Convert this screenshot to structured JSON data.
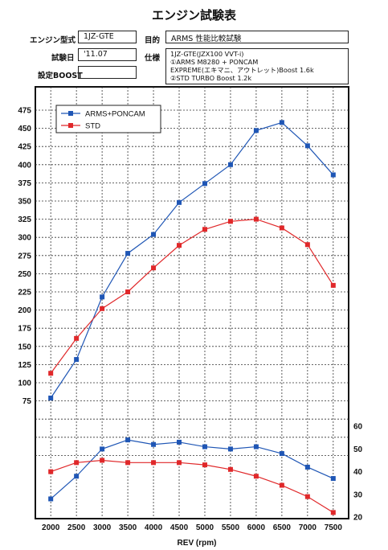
{
  "header": {
    "title": "エンジン試験表",
    "engine_type_label": "エンジン型式",
    "engine_type_value": "1JZ-GTE",
    "purpose_label": "目的",
    "purpose_value": "ARMS 性能比較試験",
    "test_date_label": "試験日",
    "test_date_value": "'11.07",
    "spec_label": "仕様",
    "spec_lines": [
      "1JZ-GTE(JZX100 VVT-i)",
      "①ARMS M8280 + PONCAM",
      "   EXPREME(エキマニ、アウトレット)Boost 1.6k",
      "②STD TURBO Boost 1.2k"
    ],
    "boost_label": "設定BOOST",
    "boost_value": ""
  },
  "chart_data": {
    "type": "line",
    "xlabel": "REV (rpm)",
    "x": [
      2000,
      2500,
      3000,
      3500,
      4000,
      4500,
      5000,
      5500,
      6000,
      6500,
      7000,
      7500
    ],
    "left_axis": {
      "ticks": [
        75,
        100,
        125,
        150,
        175,
        200,
        225,
        250,
        275,
        300,
        325,
        350,
        375,
        400,
        425,
        450,
        475
      ]
    },
    "right_axis": {
      "ticks": [
        20,
        30,
        40,
        50,
        60
      ]
    },
    "xlim": [
      1700,
      7800
    ],
    "ylim_left": [
      0,
      475
    ],
    "ylim_right": [
      20,
      60
    ],
    "grid": true,
    "legend_position": "top-left",
    "series": [
      {
        "name": "ARMS+PONCAM",
        "axis": "left",
        "color": "#1f56b5",
        "values": [
          79,
          132,
          218,
          278,
          304,
          348,
          374,
          400,
          447,
          458,
          426,
          386
        ]
      },
      {
        "name": "STD",
        "axis": "left",
        "color": "#e0282a",
        "values": [
          113,
          161,
          202,
          225,
          258,
          289,
          311,
          322,
          325,
          313,
          290,
          234
        ]
      },
      {
        "axis": "right",
        "color": "#1f56b5",
        "values": [
          28,
          38,
          50,
          54,
          52,
          53,
          51,
          50,
          51,
          48,
          42,
          37
        ]
      },
      {
        "axis": "right",
        "color": "#e0282a",
        "values": [
          40,
          44,
          45,
          44,
          44,
          44,
          43,
          41,
          38,
          34,
          29,
          22
        ]
      }
    ]
  }
}
